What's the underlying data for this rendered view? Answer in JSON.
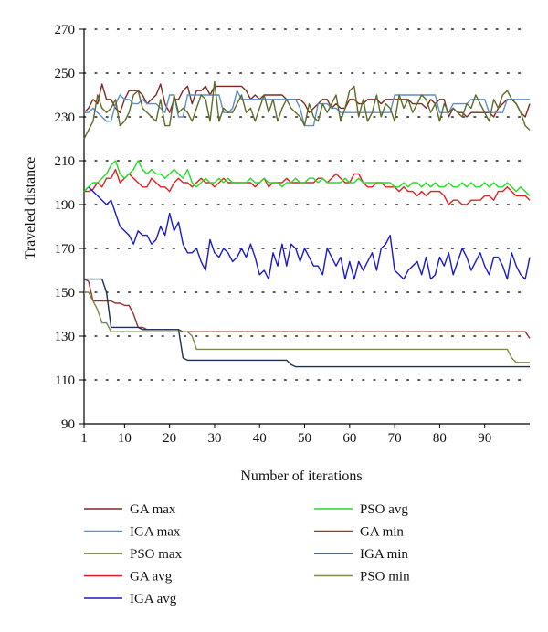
{
  "chart_data": {
    "type": "line",
    "title": "",
    "xlabel": "Number of iterations",
    "ylabel": "Traveled distance",
    "xlim": [
      1,
      100
    ],
    "ylim": [
      90,
      270
    ],
    "x_ticks": [
      1,
      10,
      20,
      30,
      40,
      50,
      60,
      70,
      80,
      90
    ],
    "y_ticks": [
      90,
      110,
      130,
      150,
      170,
      190,
      210,
      230,
      250,
      270
    ],
    "grid": "dotted horizontal",
    "legend_position": "bottom",
    "x": [
      1,
      2,
      3,
      4,
      5,
      6,
      7,
      8,
      9,
      10,
      11,
      12,
      13,
      14,
      15,
      16,
      17,
      18,
      19,
      20,
      21,
      22,
      23,
      24,
      25,
      26,
      27,
      28,
      29,
      30,
      31,
      32,
      33,
      34,
      35,
      36,
      37,
      38,
      39,
      40,
      41,
      42,
      43,
      44,
      45,
      46,
      47,
      48,
      49,
      50,
      51,
      52,
      53,
      54,
      55,
      56,
      57,
      58,
      59,
      60,
      61,
      62,
      63,
      64,
      65,
      66,
      67,
      68,
      69,
      70,
      71,
      72,
      73,
      74,
      75,
      76,
      77,
      78,
      79,
      80,
      81,
      82,
      83,
      84,
      85,
      86,
      87,
      88,
      89,
      90,
      91,
      92,
      93,
      94,
      95,
      96,
      97,
      98,
      99,
      100
    ],
    "series": [
      {
        "name": "GA max",
        "color": "#7b2a22",
        "values": [
          232,
          234,
          238,
          236,
          245,
          238,
          238,
          234,
          232,
          238,
          242,
          242,
          242,
          240,
          236,
          238,
          240,
          245,
          236,
          232,
          238,
          238,
          242,
          244,
          236,
          242,
          242,
          244,
          240,
          244,
          244,
          244,
          244,
          244,
          244,
          244,
          242,
          238,
          240,
          238,
          240,
          240,
          240,
          240,
          240,
          238,
          238,
          238,
          238,
          236,
          232,
          234,
          236,
          238,
          238,
          234,
          236,
          234,
          234,
          238,
          238,
          236,
          236,
          238,
          238,
          238,
          236,
          238,
          238,
          238,
          238,
          238,
          238,
          236,
          236,
          236,
          234,
          238,
          236,
          238,
          238,
          230,
          234,
          232,
          232,
          230,
          232,
          232,
          232,
          232,
          232,
          230,
          234,
          236,
          238,
          238,
          236,
          232,
          230,
          236
        ]
      },
      {
        "name": "IGA max",
        "color": "#5b8fc9",
        "values": [
          232,
          232,
          234,
          232,
          230,
          228,
          228,
          236,
          240,
          238,
          238,
          236,
          236,
          238,
          236,
          236,
          236,
          234,
          232,
          240,
          240,
          230,
          230,
          240,
          240,
          240,
          240,
          240,
          240,
          240,
          240,
          232,
          232,
          234,
          242,
          238,
          238,
          238,
          238,
          238,
          238,
          238,
          238,
          238,
          238,
          238,
          238,
          238,
          234,
          226,
          226,
          226,
          236,
          236,
          236,
          234,
          234,
          232,
          232,
          232,
          232,
          232,
          232,
          232,
          232,
          232,
          232,
          232,
          232,
          240,
          240,
          240,
          240,
          240,
          240,
          240,
          240,
          240,
          240,
          232,
          232,
          232,
          236,
          236,
          236,
          236,
          238,
          238,
          238,
          238,
          232,
          232,
          232,
          232,
          238,
          238,
          238,
          238,
          238,
          238
        ]
      },
      {
        "name": "PSO max",
        "color": "#5c6b2a",
        "values": [
          220,
          224,
          228,
          240,
          234,
          232,
          234,
          238,
          226,
          228,
          232,
          240,
          242,
          234,
          232,
          230,
          228,
          238,
          226,
          226,
          240,
          232,
          234,
          232,
          228,
          234,
          240,
          238,
          228,
          246,
          228,
          234,
          232,
          232,
          236,
          240,
          232,
          234,
          228,
          234,
          240,
          232,
          238,
          228,
          234,
          238,
          234,
          232,
          230,
          226,
          236,
          230,
          228,
          236,
          232,
          236,
          240,
          228,
          234,
          242,
          244,
          230,
          238,
          228,
          232,
          240,
          230,
          236,
          234,
          228,
          240,
          234,
          238,
          232,
          236,
          240,
          238,
          232,
          236,
          228,
          236,
          232,
          234,
          232,
          230,
          236,
          234,
          240,
          236,
          232,
          228,
          238,
          234,
          240,
          242,
          238,
          236,
          232,
          226,
          224
        ]
      },
      {
        "name": "GA avg",
        "color": "#e02020",
        "values": [
          196,
          196,
          197,
          200,
          198,
          202,
          202,
          206,
          200,
          202,
          204,
          202,
          200,
          198,
          198,
          202,
          200,
          198,
          198,
          196,
          200,
          202,
          200,
          200,
          198,
          200,
          202,
          200,
          200,
          198,
          200,
          202,
          200,
          200,
          200,
          200,
          200,
          200,
          198,
          200,
          202,
          198,
          200,
          200,
          200,
          202,
          200,
          200,
          200,
          200,
          200,
          200,
          202,
          202,
          200,
          202,
          204,
          202,
          200,
          200,
          204,
          204,
          200,
          198,
          198,
          200,
          200,
          198,
          198,
          198,
          196,
          198,
          196,
          196,
          194,
          196,
          194,
          196,
          196,
          196,
          194,
          190,
          192,
          192,
          190,
          190,
          192,
          192,
          192,
          194,
          194,
          192,
          196,
          196,
          198,
          196,
          194,
          194,
          194,
          192
        ]
      },
      {
        "name": "IGA avg",
        "color": "#1a1acc",
        "values": [
          196,
          198,
          196,
          194,
          192,
          190,
          192,
          186,
          180,
          178,
          176,
          172,
          178,
          176,
          176,
          172,
          174,
          180,
          176,
          186,
          178,
          182,
          172,
          168,
          168,
          170,
          164,
          160,
          174,
          168,
          166,
          170,
          168,
          164,
          166,
          170,
          166,
          172,
          166,
          158,
          160,
          156,
          168,
          162,
          172,
          162,
          172,
          170,
          164,
          170,
          166,
          162,
          162,
          158,
          170,
          166,
          162,
          166,
          156,
          164,
          156,
          164,
          160,
          164,
          168,
          160,
          170,
          172,
          176,
          160,
          158,
          156,
          160,
          162,
          164,
          158,
          166,
          156,
          158,
          166,
          162,
          168,
          158,
          164,
          170,
          166,
          160,
          164,
          168,
          162,
          158,
          166,
          166,
          162,
          156,
          168,
          162,
          158,
          156,
          166
        ]
      },
      {
        "name": "PSO avg",
        "color": "#22dd22",
        "values": [
          196,
          198,
          200,
          200,
          202,
          204,
          208,
          210,
          204,
          202,
          204,
          206,
          210,
          206,
          204,
          206,
          204,
          204,
          202,
          204,
          206,
          204,
          202,
          206,
          200,
          198,
          200,
          202,
          200,
          200,
          202,
          200,
          202,
          200,
          200,
          200,
          200,
          202,
          200,
          200,
          202,
          200,
          200,
          200,
          198,
          200,
          200,
          202,
          200,
          200,
          202,
          202,
          200,
          202,
          200,
          200,
          200,
          200,
          202,
          200,
          200,
          202,
          200,
          200,
          200,
          200,
          200,
          200,
          200,
          198,
          198,
          200,
          198,
          200,
          200,
          198,
          200,
          198,
          200,
          198,
          198,
          200,
          198,
          198,
          200,
          198,
          200,
          198,
          198,
          200,
          198,
          200,
          198,
          198,
          200,
          198,
          196,
          198,
          196,
          194
        ]
      },
      {
        "name": "GA min",
        "color": "#9a3030",
        "values": [
          156,
          155,
          146,
          146,
          146,
          146,
          146,
          145,
          145,
          144,
          144,
          140,
          134,
          134,
          133,
          133,
          133,
          133,
          133,
          133,
          133,
          133,
          132,
          132,
          132,
          132,
          132,
          132,
          132,
          132,
          132,
          132,
          132,
          132,
          132,
          132,
          132,
          132,
          132,
          132,
          132,
          132,
          132,
          132,
          132,
          132,
          132,
          132,
          132,
          132,
          132,
          132,
          132,
          132,
          132,
          132,
          132,
          132,
          132,
          132,
          132,
          132,
          132,
          132,
          132,
          132,
          132,
          132,
          132,
          132,
          132,
          132,
          132,
          132,
          132,
          132,
          132,
          132,
          132,
          132,
          132,
          132,
          132,
          132,
          132,
          132,
          132,
          132,
          132,
          132,
          132,
          132,
          132,
          132,
          132,
          132,
          132,
          132,
          132,
          129
        ]
      },
      {
        "name": "IGA min",
        "color": "#1a3050",
        "values": [
          156,
          156,
          156,
          156,
          156,
          150,
          134,
          134,
          134,
          134,
          134,
          134,
          134,
          133,
          133,
          133,
          133,
          133,
          133,
          133,
          133,
          133,
          120,
          119,
          119,
          119,
          119,
          119,
          119,
          119,
          119,
          119,
          119,
          119,
          119,
          119,
          119,
          119,
          119,
          119,
          119,
          119,
          119,
          119,
          119,
          119,
          117,
          116,
          116,
          116,
          116,
          116,
          116,
          116,
          116,
          116,
          116,
          116,
          116,
          116,
          116,
          116,
          116,
          116,
          116,
          116,
          116,
          116,
          116,
          116,
          116,
          116,
          116,
          116,
          116,
          116,
          116,
          116,
          116,
          116,
          116,
          116,
          116,
          116,
          116,
          116,
          116,
          116,
          116,
          116,
          116,
          116,
          116,
          116,
          116,
          116,
          116,
          116,
          116,
          116
        ]
      },
      {
        "name": "PSO min",
        "color": "#7a8a48",
        "values": [
          150,
          150,
          146,
          142,
          136,
          136,
          132,
          132,
          132,
          132,
          132,
          132,
          132,
          132,
          132,
          132,
          132,
          132,
          132,
          132,
          132,
          132,
          132,
          132,
          130,
          124,
          124,
          124,
          124,
          124,
          124,
          124,
          124,
          124,
          124,
          124,
          124,
          124,
          124,
          124,
          124,
          124,
          124,
          124,
          124,
          124,
          124,
          124,
          124,
          124,
          124,
          124,
          124,
          124,
          124,
          124,
          124,
          124,
          124,
          124,
          124,
          124,
          124,
          124,
          124,
          124,
          124,
          124,
          124,
          124,
          124,
          124,
          124,
          124,
          124,
          124,
          124,
          124,
          124,
          124,
          124,
          124,
          124,
          124,
          124,
          124,
          124,
          124,
          124,
          124,
          124,
          124,
          124,
          124,
          124,
          120,
          118,
          118,
          118,
          118
        ]
      }
    ]
  }
}
